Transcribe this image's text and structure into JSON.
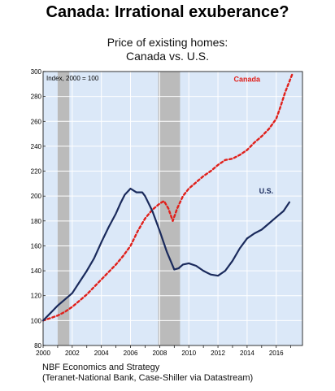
{
  "title": "Canada: Irrational exuberance?",
  "subtitle_line1": "Price of existing homes:",
  "subtitle_line2": "Canada vs. U.S.",
  "footer_line1": "NBF Economics and Strategy",
  "footer_line2": "(Teranet-National Bank, Case-Shiller via Datastream)",
  "chart_data": {
    "type": "line",
    "annotation": "Index, 2000 = 100",
    "xlim": [
      2000,
      2017.8
    ],
    "ylim": [
      80,
      300
    ],
    "yticks": [
      80,
      100,
      120,
      140,
      160,
      180,
      200,
      220,
      240,
      260,
      280,
      300
    ],
    "xticks": [
      2000,
      2002,
      2004,
      2006,
      2008,
      2010,
      2012,
      2014,
      2016
    ],
    "xtick_labels": [
      "2000",
      "2002",
      "2004",
      "2006",
      "2008",
      "2010",
      "2012",
      "2014",
      "2016"
    ],
    "grid": true,
    "background_color": "#dbe8f8",
    "recessions": [
      [
        2001.0,
        2001.8
      ],
      [
        2007.9,
        2009.4
      ]
    ],
    "recession_color": "#bbbbbb",
    "series": [
      {
        "name": "Canada",
        "color": "#e0201b",
        "style": "dashed",
        "label_x": 2014.9,
        "label_y": 292,
        "x": [
          2000,
          2000.5,
          2001,
          2001.5,
          2002,
          2002.5,
          2003,
          2003.5,
          2004,
          2004.5,
          2005,
          2005.5,
          2006,
          2006.5,
          2007,
          2007.5,
          2008,
          2008.3,
          2008.6,
          2008.9,
          2009.2,
          2009.6,
          2010,
          2010.5,
          2011,
          2011.5,
          2012,
          2012.5,
          2013,
          2013.5,
          2014,
          2014.5,
          2015,
          2015.5,
          2016,
          2016.3,
          2016.6,
          2016.9,
          2017.1
        ],
        "y": [
          100,
          102,
          104,
          107,
          111,
          116,
          121,
          127,
          133,
          139,
          145,
          152,
          160,
          172,
          182,
          189,
          194,
          196,
          190,
          180,
          190,
          200,
          206,
          211,
          216,
          220,
          225,
          229,
          230,
          233,
          237,
          243,
          248,
          254,
          262,
          272,
          283,
          292,
          298
        ]
      },
      {
        "name": "U.S.",
        "color": "#1a2a5c",
        "style": "solid",
        "label_x": 2015.8,
        "label_y": 202,
        "x": [
          2000,
          2000.5,
          2001,
          2001.5,
          2002,
          2002.5,
          2003,
          2003.5,
          2004,
          2004.5,
          2005,
          2005.3,
          2005.6,
          2006,
          2006.4,
          2006.8,
          2007,
          2007.5,
          2008,
          2008.5,
          2009,
          2009.3,
          2009.6,
          2010,
          2010.5,
          2011,
          2011.5,
          2012,
          2012.5,
          2013,
          2013.5,
          2014,
          2014.5,
          2015,
          2015.5,
          2016,
          2016.5,
          2016.9
        ],
        "y": [
          100,
          106,
          112,
          117,
          122,
          131,
          140,
          150,
          163,
          175,
          186,
          194,
          201,
          206,
          203,
          203,
          200,
          188,
          172,
          155,
          141,
          142,
          145,
          146,
          144,
          140,
          137,
          136,
          140,
          148,
          158,
          166,
          170,
          173,
          178,
          183,
          188,
          195
        ]
      }
    ]
  }
}
